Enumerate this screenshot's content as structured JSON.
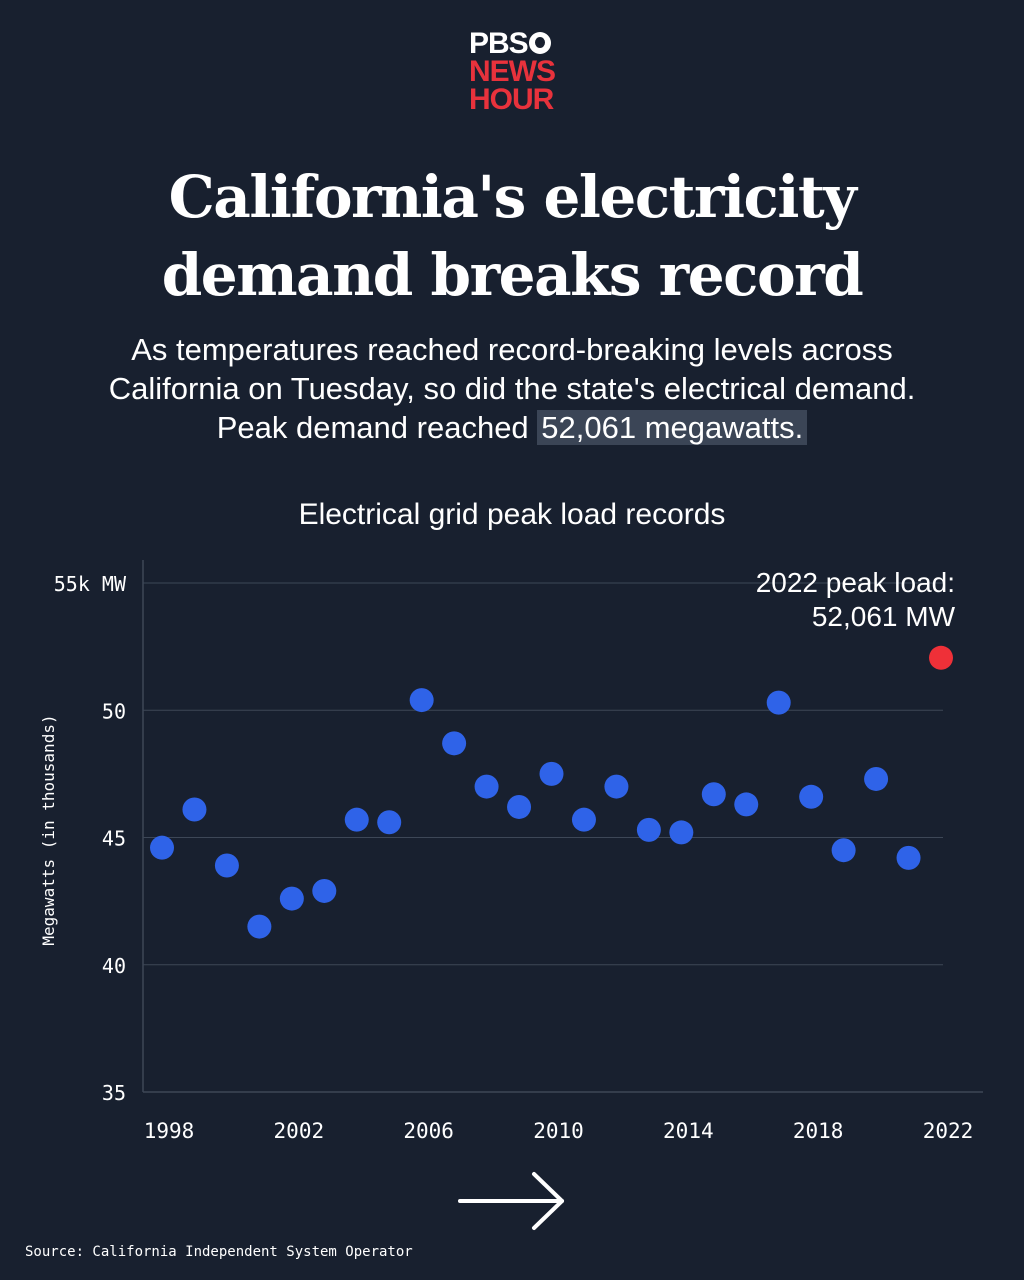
{
  "logo": {
    "line1": "PBS",
    "line2": "NEWS",
    "line3": "HOUR"
  },
  "title": {
    "line1": "California's electricity",
    "line2": "demand breaks record"
  },
  "subtitle": {
    "line1": "As temperatures reached record-breaking levels across",
    "line2": "California on Tuesday, so did the state's electrical demand.",
    "line3_prefix": "Peak demand reached ",
    "line3_highlight": "52,061 megawatts."
  },
  "colors": {
    "background": "#18202f",
    "point": "#2f63e8",
    "highlight_point": "#ef3038",
    "grid": "#3d4757"
  },
  "chart_data": {
    "type": "scatter",
    "title": "Electrical grid peak load records",
    "ylabel": "Megawatts (in thousands)",
    "xlabel": "",
    "ylim": [
      35,
      55
    ],
    "xlim": [
      1998,
      2022
    ],
    "y_ticks": [
      {
        "value": 55,
        "label": "55k MW"
      },
      {
        "value": 50,
        "label": "50"
      },
      {
        "value": 45,
        "label": "45"
      },
      {
        "value": 40,
        "label": "40"
      },
      {
        "value": 35,
        "label": "35"
      }
    ],
    "x_ticks": [
      1998,
      2002,
      2006,
      2010,
      2014,
      2018,
      2022
    ],
    "grid": true,
    "points": [
      {
        "x": 1998,
        "y": 44.6
      },
      {
        "x": 1999,
        "y": 46.1
      },
      {
        "x": 2000,
        "y": 43.9
      },
      {
        "x": 2001,
        "y": 41.5
      },
      {
        "x": 2002,
        "y": 42.6
      },
      {
        "x": 2003,
        "y": 42.9
      },
      {
        "x": 2004,
        "y": 45.7
      },
      {
        "x": 2005,
        "y": 45.6
      },
      {
        "x": 2006,
        "y": 50.4
      },
      {
        "x": 2007,
        "y": 48.7
      },
      {
        "x": 2008,
        "y": 47.0
      },
      {
        "x": 2009,
        "y": 46.2
      },
      {
        "x": 2010,
        "y": 47.5
      },
      {
        "x": 2011,
        "y": 45.7
      },
      {
        "x": 2012,
        "y": 47.0
      },
      {
        "x": 2013,
        "y": 45.3
      },
      {
        "x": 2014,
        "y": 45.2
      },
      {
        "x": 2015,
        "y": 46.7
      },
      {
        "x": 2016,
        "y": 46.3
      },
      {
        "x": 2017,
        "y": 50.3
      },
      {
        "x": 2018,
        "y": 46.6
      },
      {
        "x": 2019,
        "y": 44.5
      },
      {
        "x": 2020,
        "y": 47.3
      },
      {
        "x": 2021,
        "y": 44.2
      },
      {
        "x": 2022,
        "y": 52.061,
        "highlight": true
      }
    ],
    "annotation": {
      "line1": "2022 peak load:",
      "line2": "52,061 MW"
    }
  },
  "source": "Source: California Independent System Operator"
}
